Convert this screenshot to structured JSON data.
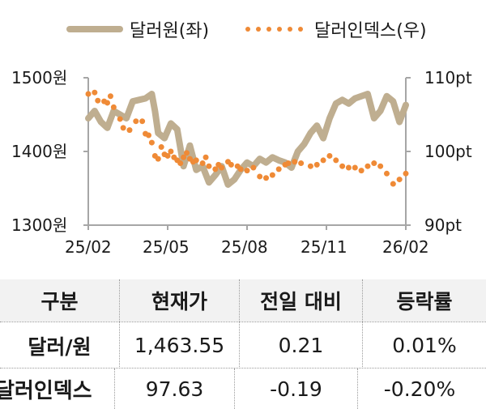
{
  "legend": {
    "series1": {
      "label": "달러원(좌)",
      "color": "#bfae90",
      "style": "solid"
    },
    "series2": {
      "label": "달러인덱스(우)",
      "color": "#ef8a36",
      "style": "dotted"
    }
  },
  "axes": {
    "left": {
      "ticks": [
        "1500원",
        "1400원",
        "1300원"
      ]
    },
    "right": {
      "ticks": [
        "110pt",
        "100pt",
        "90pt"
      ]
    },
    "x": {
      "ticks": [
        "25/02",
        "25/05",
        "25/08",
        "25/11",
        "26/02"
      ]
    }
  },
  "chart_data": {
    "type": "line",
    "title": "",
    "x_ticks": [
      "25/02",
      "25/05",
      "25/08",
      "25/11",
      "26/02"
    ],
    "legend_position": "top",
    "grid": false,
    "series": [
      {
        "name": "달러원(좌)",
        "axis": "left",
        "unit": "원",
        "ylim": [
          1300,
          1500
        ],
        "color": "#bfae90",
        "x": [
          0.0,
          0.02,
          0.04,
          0.06,
          0.08,
          0.1,
          0.12,
          0.14,
          0.16,
          0.18,
          0.2,
          0.21,
          0.22,
          0.24,
          0.26,
          0.28,
          0.3,
          0.32,
          0.34,
          0.36,
          0.38,
          0.4,
          0.42,
          0.44,
          0.46,
          0.48,
          0.5,
          0.52,
          0.54,
          0.56,
          0.58,
          0.6,
          0.62,
          0.64,
          0.66,
          0.68,
          0.7,
          0.72,
          0.74,
          0.76,
          0.78,
          0.8,
          0.82,
          0.84,
          0.86,
          0.88,
          0.9,
          0.92,
          0.94,
          0.96,
          0.98,
          1.0
        ],
        "values": [
          1445,
          1455,
          1440,
          1432,
          1455,
          1450,
          1445,
          1468,
          1470,
          1472,
          1478,
          1455,
          1425,
          1418,
          1438,
          1430,
          1380,
          1408,
          1375,
          1380,
          1358,
          1368,
          1380,
          1355,
          1362,
          1375,
          1385,
          1380,
          1390,
          1385,
          1392,
          1388,
          1385,
          1378,
          1400,
          1410,
          1425,
          1435,
          1418,
          1445,
          1465,
          1470,
          1465,
          1472,
          1475,
          1478,
          1445,
          1455,
          1475,
          1468,
          1440,
          1463
        ]
      },
      {
        "name": "달러인덱스(우)",
        "axis": "right",
        "unit": "pt",
        "ylim": [
          90,
          110
        ],
        "color": "#ef8a36",
        "x": [
          0.0,
          0.02,
          0.03,
          0.05,
          0.06,
          0.07,
          0.08,
          0.1,
          0.11,
          0.13,
          0.15,
          0.17,
          0.18,
          0.19,
          0.2,
          0.21,
          0.22,
          0.23,
          0.24,
          0.25,
          0.26,
          0.27,
          0.28,
          0.29,
          0.3,
          0.31,
          0.32,
          0.33,
          0.34,
          0.36,
          0.37,
          0.38,
          0.4,
          0.41,
          0.42,
          0.44,
          0.45,
          0.47,
          0.48,
          0.5,
          0.52,
          0.54,
          0.56,
          0.58,
          0.6,
          0.62,
          0.63,
          0.65,
          0.67,
          0.7,
          0.72,
          0.74,
          0.76,
          0.78,
          0.8,
          0.82,
          0.84,
          0.86,
          0.88,
          0.9,
          0.92,
          0.94,
          0.96,
          0.98,
          1.0
        ],
        "values": [
          107.8,
          108.0,
          106.9,
          106.8,
          106.6,
          107.5,
          106.0,
          104.4,
          103.2,
          102.9,
          104.1,
          104.1,
          102.4,
          102.2,
          101.2,
          99.4,
          99.0,
          100.6,
          99.6,
          99.4,
          100.0,
          99.2,
          98.8,
          98.4,
          99.2,
          99.8,
          99.0,
          98.6,
          98.8,
          98.4,
          99.2,
          98.0,
          97.6,
          98.2,
          97.8,
          98.6,
          98.2,
          98.0,
          97.6,
          97.4,
          97.8,
          96.6,
          96.4,
          96.8,
          97.6,
          98.2,
          98.4,
          98.6,
          98.4,
          98.0,
          98.2,
          98.8,
          99.4,
          98.8,
          98.0,
          97.8,
          97.8,
          97.4,
          98.0,
          98.4,
          98.0,
          97.0,
          95.6,
          96.2,
          97.0
        ]
      }
    ]
  },
  "table": {
    "headers": [
      "구분",
      "현재가",
      "전일 대비",
      "등락률"
    ],
    "rows": [
      [
        "달러/원",
        "1,463.55",
        "0.21",
        "0.01%"
      ],
      [
        "달러인덱스",
        "97.63",
        "-0.19",
        "-0.20%"
      ]
    ]
  }
}
